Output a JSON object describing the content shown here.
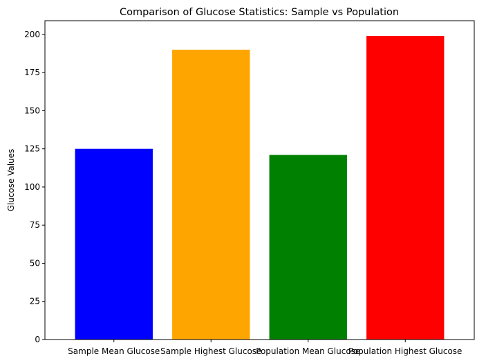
{
  "chart_data": {
    "type": "bar",
    "title": "Comparison of Glucose Statistics: Sample vs Population",
    "xlabel": "",
    "ylabel": "Glucose Values",
    "ylim": [
      0,
      209
    ],
    "yticks": [
      0,
      25,
      50,
      75,
      100,
      125,
      150,
      175,
      200
    ],
    "categories": [
      "Sample Mean Glucose",
      "Sample Highest Glucose",
      "Population Mean Glucose",
      "Population Highest Glucose"
    ],
    "values": [
      125,
      190,
      121,
      199
    ],
    "colors": [
      "#0000ff",
      "#ffa500",
      "#008000",
      "#ff0000"
    ],
    "grid": false,
    "legend": "none"
  }
}
